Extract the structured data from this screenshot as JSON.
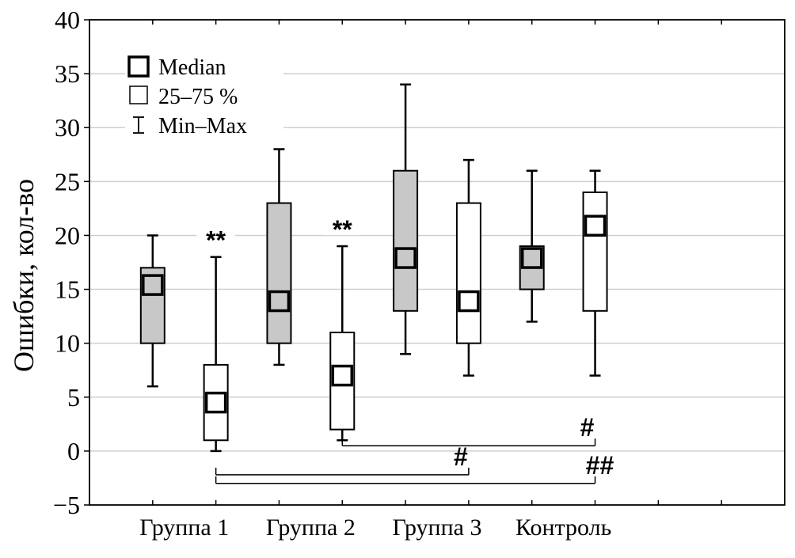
{
  "chart_data": {
    "type": "boxplot",
    "ylabel": "Ошибки, кол-во",
    "xlabel": "",
    "ylim": [
      -5,
      40
    ],
    "yticks": [
      40,
      35,
      30,
      25,
      20,
      15,
      10,
      5,
      0,
      -5
    ],
    "ytick_labels": [
      "40",
      "35",
      "30",
      "25",
      "20",
      "15",
      "10",
      "5",
      "0",
      "−5"
    ],
    "grid": true,
    "category_labels": [
      "Группа 1",
      "Группа 2",
      "Группа 3",
      "Контроль"
    ],
    "legend": {
      "placement": "top-left",
      "items": [
        {
          "kind": "median",
          "label": "Median"
        },
        {
          "kind": "box",
          "label": "25–75 %"
        },
        {
          "kind": "whisker",
          "label": "Min–Max"
        }
      ]
    },
    "boxes": [
      {
        "slot": 1,
        "min": 6,
        "q1": 10,
        "median": 15.4,
        "q3": 17,
        "max": 20,
        "fill": "#c8c8c8",
        "annotation": ""
      },
      {
        "slot": 2,
        "min": 0,
        "q1": 1,
        "median": 4.5,
        "q3": 8,
        "max": 18,
        "fill": "#ffffff",
        "annotation": "**"
      },
      {
        "slot": 3,
        "min": 8,
        "q1": 10,
        "median": 13.9,
        "q3": 23,
        "max": 28,
        "fill": "#c8c8c8",
        "annotation": ""
      },
      {
        "slot": 4,
        "min": 1,
        "q1": 2,
        "median": 7,
        "q3": 11,
        "max": 19,
        "fill": "#ffffff",
        "annotation": "**"
      },
      {
        "slot": 5,
        "min": 9,
        "q1": 13,
        "median": 17.9,
        "q3": 26,
        "max": 34,
        "fill": "#c8c8c8",
        "annotation": ""
      },
      {
        "slot": 6,
        "min": 7,
        "q1": 10,
        "median": 13.9,
        "q3": 23,
        "max": 27,
        "fill": "#ffffff",
        "annotation": ""
      },
      {
        "slot": 7,
        "min": 12,
        "q1": 15,
        "median": 17.9,
        "q3": 19,
        "max": 26,
        "fill": "#c8c8c8",
        "annotation": ""
      },
      {
        "slot": 8,
        "min": 7,
        "q1": 13,
        "median": 20.9,
        "q3": 24,
        "max": 26,
        "fill": "#ffffff",
        "annotation": ""
      }
    ],
    "significance": [
      {
        "from_slot": 4,
        "to_slot": 8,
        "y": 0.5,
        "label": "#"
      },
      {
        "from_slot": 2,
        "to_slot": 6,
        "y": -2.2,
        "label": "#"
      },
      {
        "from_slot": 2,
        "to_slot": 8,
        "y": -3.0,
        "label": "##"
      }
    ]
  }
}
